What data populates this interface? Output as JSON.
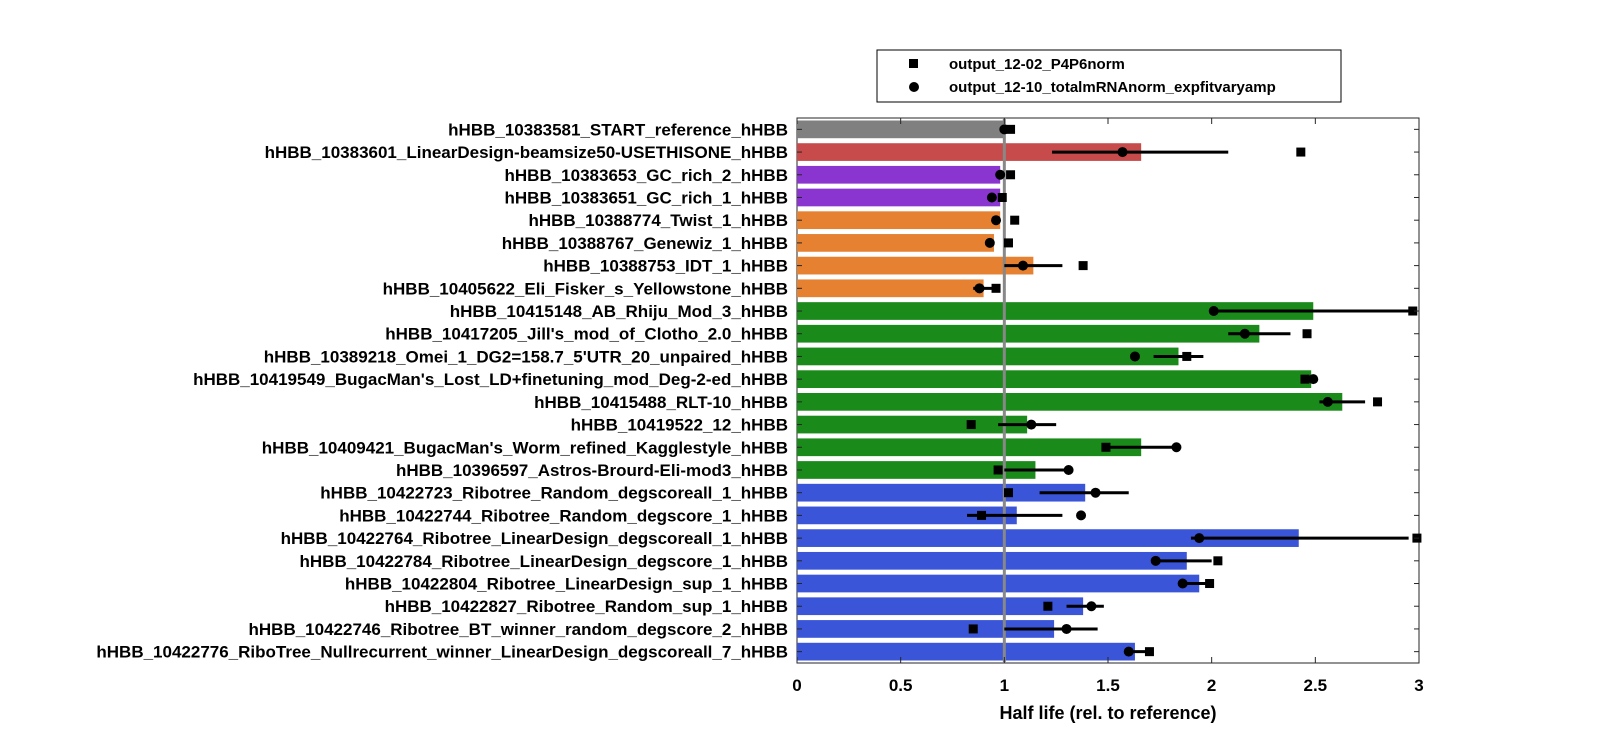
{
  "chart_data": {
    "type": "bar",
    "orientation": "horizontal",
    "xlabel": "Half life (rel. to reference)",
    "xlim": [
      0,
      3
    ],
    "xticks": [
      "0",
      "0.5",
      "1",
      "1.5",
      "2",
      "2.5",
      "3"
    ],
    "reference_line": 1,
    "colors": {
      "reference": "#808080",
      "linear_design": "#c84b4b",
      "gc_rich": "#8b35d0",
      "vendor": "#e58130",
      "player": "#1a8a1a",
      "ribotree": "#3a55d8"
    },
    "legend": {
      "position": "top",
      "entries": [
        {
          "label": "output_12-02_P4P6norm",
          "marker": "square"
        },
        {
          "label": "output_12-10_totalmRNAnorm_expfitvaryamp",
          "marker": "circle"
        }
      ]
    },
    "categories": [
      "hHBB_10383581_START_reference_hHBB",
      "hHBB_10383601_LinearDesign-beamsize50-USETHISONE_hHBB",
      "hHBB_10383653_GC_rich_2_hHBB",
      "hHBB_10383651_GC_rich_1_hHBB",
      "hHBB_10388774_Twist_1_hHBB",
      "hHBB_10388767_Genewiz_1_hHBB",
      "hHBB_10388753_IDT_1_hHBB",
      "hHBB_10405622_Eli_Fisker_s_Yellowstone_hHBB",
      "hHBB_10415148_AB_Rhiju_Mod_3_hHBB",
      "hHBB_10417205_Jill's_mod_of_Clotho_2.0_hHBB",
      "hHBB_10389218_Omei_1_DG2=158.7_5'UTR_20_unpaired_hHBB",
      "hHBB_10419549_BugacMan's_Lost_LD+finetuning_mod_Deg-2-ed_hHBB",
      "hHBB_10415488_RLT-10_hHBB",
      "hHBB_10419522_12_hHBB",
      "hHBB_10409421_BugacMan's_Worm_refined_Kagglestyle_hHBB",
      "hHBB_10396597_Astros-Brourd-Eli-mod3_hHBB",
      "hHBB_10422723_Ribotree_Random_degscoreall_1_hHBB",
      "hHBB_10422744_Ribotree_Random_degscore_1_hHBB",
      "hHBB_10422764_Ribotree_LinearDesign_degscoreall_1_hHBB",
      "hHBB_10422784_Ribotree_LinearDesign_degscore_1_hHBB",
      "hHBB_10422804_Ribotree_LinearDesign_sup_1_hHBB",
      "hHBB_10422827_Ribotree_Random_sup_1_hHBB",
      "hHBB_10422746_Ribotree_BT_winner_random_degscore_2_hHBB",
      "hHBB_10422776_RiboTree_Nullrecurrent_winner_LinearDesign_degscoreall_7_hHBB"
    ],
    "bar_groups": [
      "reference",
      "linear_design",
      "gc_rich",
      "gc_rich",
      "vendor",
      "vendor",
      "vendor",
      "vendor",
      "player",
      "player",
      "player",
      "player",
      "player",
      "player",
      "player",
      "player",
      "ribotree",
      "ribotree",
      "ribotree",
      "ribotree",
      "ribotree",
      "ribotree",
      "ribotree",
      "ribotree"
    ],
    "values": [
      1.0,
      1.66,
      0.98,
      0.98,
      0.98,
      0.95,
      1.14,
      0.9,
      2.49,
      2.23,
      1.84,
      2.48,
      2.63,
      1.11,
      1.66,
      1.15,
      1.39,
      1.06,
      2.42,
      1.88,
      1.94,
      1.38,
      1.24,
      1.63
    ],
    "error_low": [
      null,
      1.23,
      null,
      null,
      null,
      null,
      1.0,
      0.85,
      2.03,
      2.08,
      1.72,
      null,
      2.52,
      0.97,
      1.47,
      1.0,
      1.17,
      0.82,
      1.9,
      1.74,
      1.88,
      1.3,
      1.0,
      1.6
    ],
    "error_high": [
      null,
      2.08,
      null,
      null,
      null,
      null,
      1.28,
      0.95,
      2.98,
      2.38,
      1.96,
      null,
      2.74,
      1.25,
      1.82,
      1.32,
      1.6,
      1.28,
      2.95,
      2.0,
      1.98,
      1.48,
      1.45,
      1.72
    ],
    "series": [
      {
        "name": "output_12-02_P4P6norm",
        "marker": "square",
        "values": [
          1.03,
          2.43,
          1.03,
          0.99,
          1.05,
          1.02,
          1.38,
          0.96,
          2.97,
          2.46,
          1.88,
          2.45,
          2.8,
          0.84,
          1.49,
          0.97,
          1.02,
          0.89,
          2.99,
          2.03,
          1.99,
          1.21,
          0.85,
          1.7
        ]
      },
      {
        "name": "output_12-10_totalmRNAnorm_expfitvaryamp",
        "marker": "circle",
        "values": [
          1.0,
          1.57,
          0.98,
          0.94,
          0.96,
          0.93,
          1.09,
          0.88,
          2.01,
          2.16,
          1.63,
          2.49,
          2.56,
          1.13,
          1.83,
          1.31,
          1.44,
          1.37,
          1.94,
          1.73,
          1.86,
          1.42,
          1.3,
          1.6
        ]
      }
    ]
  }
}
